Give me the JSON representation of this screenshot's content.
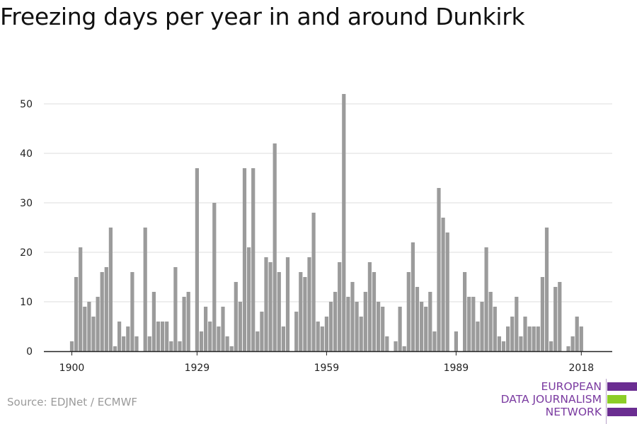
{
  "title": "Freezing days per year in and around Dunkirk",
  "source": "Source: EDJNet / ECMWF",
  "logo": {
    "lines": [
      "EUROPEAN",
      "DATA JOURNALISM",
      "NETWORK"
    ],
    "colors": {
      "purple": "#6a2d91",
      "green": "#8ccd27",
      "text": "#7a3aa0"
    }
  },
  "colors": {
    "bar": "#9b9b9b",
    "grid": "#dddddd",
    "axis": "#222222"
  },
  "chart_data": {
    "type": "bar",
    "title": "Freezing days per year in and around Dunkirk",
    "xlabel": "",
    "ylabel": "",
    "ylim": [
      0,
      55
    ],
    "yticks": [
      0,
      10,
      20,
      30,
      40,
      50
    ],
    "xticks": [
      1900,
      1929,
      1959,
      1989,
      2018
    ],
    "grid": true,
    "x": [
      1900,
      1901,
      1902,
      1903,
      1904,
      1905,
      1906,
      1907,
      1908,
      1909,
      1910,
      1911,
      1912,
      1913,
      1914,
      1915,
      1916,
      1917,
      1918,
      1919,
      1920,
      1921,
      1922,
      1923,
      1924,
      1925,
      1926,
      1927,
      1928,
      1929,
      1930,
      1931,
      1932,
      1933,
      1934,
      1935,
      1936,
      1937,
      1938,
      1939,
      1940,
      1941,
      1942,
      1943,
      1944,
      1945,
      1946,
      1947,
      1948,
      1949,
      1950,
      1951,
      1952,
      1953,
      1954,
      1955,
      1956,
      1957,
      1958,
      1959,
      1960,
      1961,
      1962,
      1963,
      1964,
      1965,
      1966,
      1967,
      1968,
      1969,
      1970,
      1971,
      1972,
      1973,
      1974,
      1975,
      1976,
      1977,
      1978,
      1979,
      1980,
      1981,
      1982,
      1983,
      1984,
      1985,
      1986,
      1987,
      1988,
      1989,
      1990,
      1991,
      1992,
      1993,
      1994,
      1995,
      1996,
      1997,
      1998,
      1999,
      2000,
      2001,
      2002,
      2003,
      2004,
      2005,
      2006,
      2007,
      2008,
      2009,
      2010,
      2011,
      2012,
      2013,
      2014,
      2015,
      2016,
      2017,
      2018
    ],
    "values": [
      2,
      15,
      21,
      9,
      10,
      7,
      11,
      16,
      17,
      25,
      1,
      6,
      3,
      5,
      16,
      3,
      0,
      25,
      3,
      12,
      6,
      6,
      6,
      2,
      17,
      2,
      11,
      12,
      0,
      37,
      4,
      9,
      6,
      30,
      5,
      9,
      3,
      1,
      14,
      10,
      37,
      21,
      37,
      4,
      8,
      19,
      18,
      42,
      16,
      5,
      19,
      0,
      8,
      16,
      15,
      19,
      28,
      6,
      5,
      7,
      10,
      12,
      18,
      52,
      11,
      14,
      10,
      7,
      12,
      18,
      16,
      10,
      9,
      3,
      0,
      2,
      9,
      1,
      16,
      22,
      13,
      10,
      9,
      12,
      4,
      33,
      27,
      24,
      0,
      4,
      0,
      16,
      11,
      11,
      6,
      10,
      21,
      12,
      9,
      3,
      2,
      5,
      7,
      11,
      3,
      7,
      5,
      5,
      5,
      15,
      25,
      2,
      13,
      14,
      0,
      1,
      3,
      7,
      5
    ]
  }
}
